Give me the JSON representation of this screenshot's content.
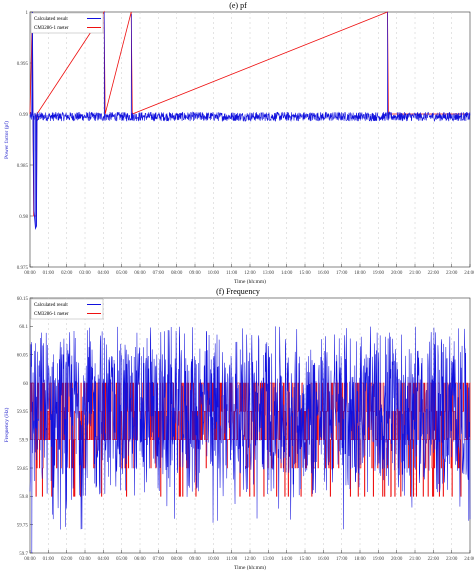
{
  "colors": {
    "calculated": "#1111dd",
    "meter": "#ee1111",
    "grid": "#c8c8c8",
    "axis": "#333333"
  },
  "chart_data": [
    {
      "type": "line",
      "title": "(e) pf",
      "xlabel": "Time (hh:mm)",
      "ylabel": "Power factor (pf)",
      "x_tick_labels": [
        "00:00",
        "01:00",
        "02:00",
        "03:00",
        "04:00",
        "05:00",
        "06:00",
        "07:00",
        "08:00",
        "09:00",
        "10:00",
        "11:00",
        "12:00",
        "13:00",
        "14:00",
        "15:00",
        "16:00",
        "17:00",
        "18:00",
        "19:00",
        "20:00",
        "21:00",
        "22:00",
        "23:00",
        "24:00"
      ],
      "y_tick_labels": [
        "0.975",
        "0.98",
        "0.985",
        "0.99",
        "0.995",
        "1"
      ],
      "ylim": [
        0.975,
        1.0
      ],
      "xlim": [
        0,
        24
      ],
      "grid": "vertical dashed",
      "legend_position": "top-left",
      "series": [
        {
          "name": "Calculated result",
          "color": "#1111dd",
          "points": [
            [
              0.0,
              0.9898
            ],
            [
              0.1,
              0.9898
            ],
            [
              0.13,
              1.0
            ],
            [
              0.16,
              0.9898
            ],
            [
              0.22,
              0.9805
            ],
            [
              0.3,
              0.9788
            ],
            [
              0.35,
              0.979
            ],
            [
              0.38,
              0.9893
            ],
            [
              0.5,
              0.9898
            ],
            [
              4.0,
              0.9898
            ],
            [
              4.05,
              1.0
            ],
            [
              4.1,
              0.9898
            ],
            [
              5.48,
              0.9898
            ],
            [
              5.53,
              0.9998
            ],
            [
              5.58,
              0.9898
            ],
            [
              19.46,
              0.9898
            ],
            [
              19.5,
              1.0
            ],
            [
              19.54,
              0.9898
            ],
            [
              24.0,
              0.9898
            ]
          ],
          "baseline": 0.9898,
          "noise_band": [
            0.9893,
            0.9902
          ]
        },
        {
          "name": "CM3286-1 meter",
          "color": "#ee1111",
          "points": [
            [
              0.0,
              0.99
            ],
            [
              0.13,
              1.0
            ],
            [
              0.16,
              0.99
            ],
            [
              0.2,
              0.98
            ],
            [
              0.35,
              0.98
            ],
            [
              0.38,
              0.99
            ],
            [
              4.04,
              1.0
            ],
            [
              4.1,
              0.99
            ],
            [
              5.52,
              1.0
            ],
            [
              5.58,
              0.99
            ],
            [
              19.5,
              1.0
            ],
            [
              19.55,
              0.99
            ],
            [
              24.0,
              0.99
            ]
          ]
        }
      ]
    },
    {
      "type": "line",
      "title": "(f) Frequency",
      "xlabel": "Time (hh:mm)",
      "ylabel": "Frequency (Hz)",
      "x_tick_labels": [
        "00:00",
        "01:00",
        "02:00",
        "03:00",
        "04:00",
        "05:00",
        "06:00",
        "07:00",
        "08:00",
        "09:00",
        "10:00",
        "11:00",
        "12:00",
        "13:00",
        "14:00",
        "15:00",
        "16:00",
        "17:00",
        "18:00",
        "19:00",
        "20:00",
        "21:00",
        "22:00",
        "23:00",
        "24:00"
      ],
      "y_tick_labels": [
        "59.7",
        "59.75",
        "59.8",
        "59.85",
        "59.9",
        "59.95",
        "60",
        "60.05",
        "60.1",
        "60.15"
      ],
      "ylim": [
        59.7,
        60.15
      ],
      "xlim": [
        0,
        24
      ],
      "grid": "vertical dashed",
      "legend_position": "top-left",
      "series": [
        {
          "name": "Calculated result",
          "color": "#1111dd",
          "range": [
            59.74,
            60.1
          ],
          "center": 59.95,
          "min_point": [
            0.1,
            59.7
          ],
          "max_point": [
            10.1,
            60.07
          ]
        },
        {
          "name": "CM3286-1 meter",
          "color": "#ee1111",
          "levels": [
            59.8,
            59.85,
            59.9,
            59.95,
            60.0
          ],
          "dominant": [
            59.9,
            60.0
          ]
        }
      ]
    }
  ]
}
